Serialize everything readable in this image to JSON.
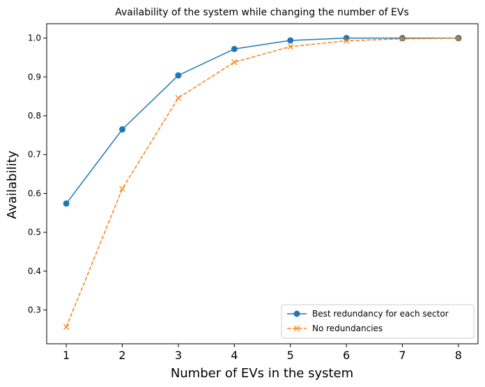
{
  "chart_data": {
    "type": "line",
    "title": "Availability of the system while changing the number of EVs",
    "xlabel": "Number of EVs in the system",
    "ylabel": "Availability",
    "x": [
      1,
      2,
      3,
      4,
      5,
      6,
      7,
      8
    ],
    "xlim": [
      0.65,
      8.35
    ],
    "ylim": [
      0.213,
      1.037
    ],
    "xticks": [
      1,
      2,
      3,
      4,
      5,
      6,
      7,
      8
    ],
    "yticks": [
      0.3,
      0.4,
      0.5,
      0.6,
      0.7,
      0.8,
      0.9,
      1.0
    ],
    "ytick_labels": [
      "0.3",
      "0.4",
      "0.5",
      "0.6",
      "0.7",
      "0.8",
      "0.9",
      "1.0"
    ],
    "grid": false,
    "legend_position": "lower right",
    "series": [
      {
        "name": "Best redundancy for each sector",
        "values": [
          0.574,
          0.765,
          0.904,
          0.972,
          0.994,
          1.0,
          1.0,
          1.0
        ],
        "color": "#1f77b4",
        "linestyle": "solid",
        "marker": "circle"
      },
      {
        "name": "No redundancies",
        "values": [
          0.256,
          0.612,
          0.846,
          0.938,
          0.978,
          0.993,
          0.998,
          1.0
        ],
        "color": "#ff7f0e",
        "linestyle": "dashed",
        "marker": "x"
      }
    ]
  }
}
